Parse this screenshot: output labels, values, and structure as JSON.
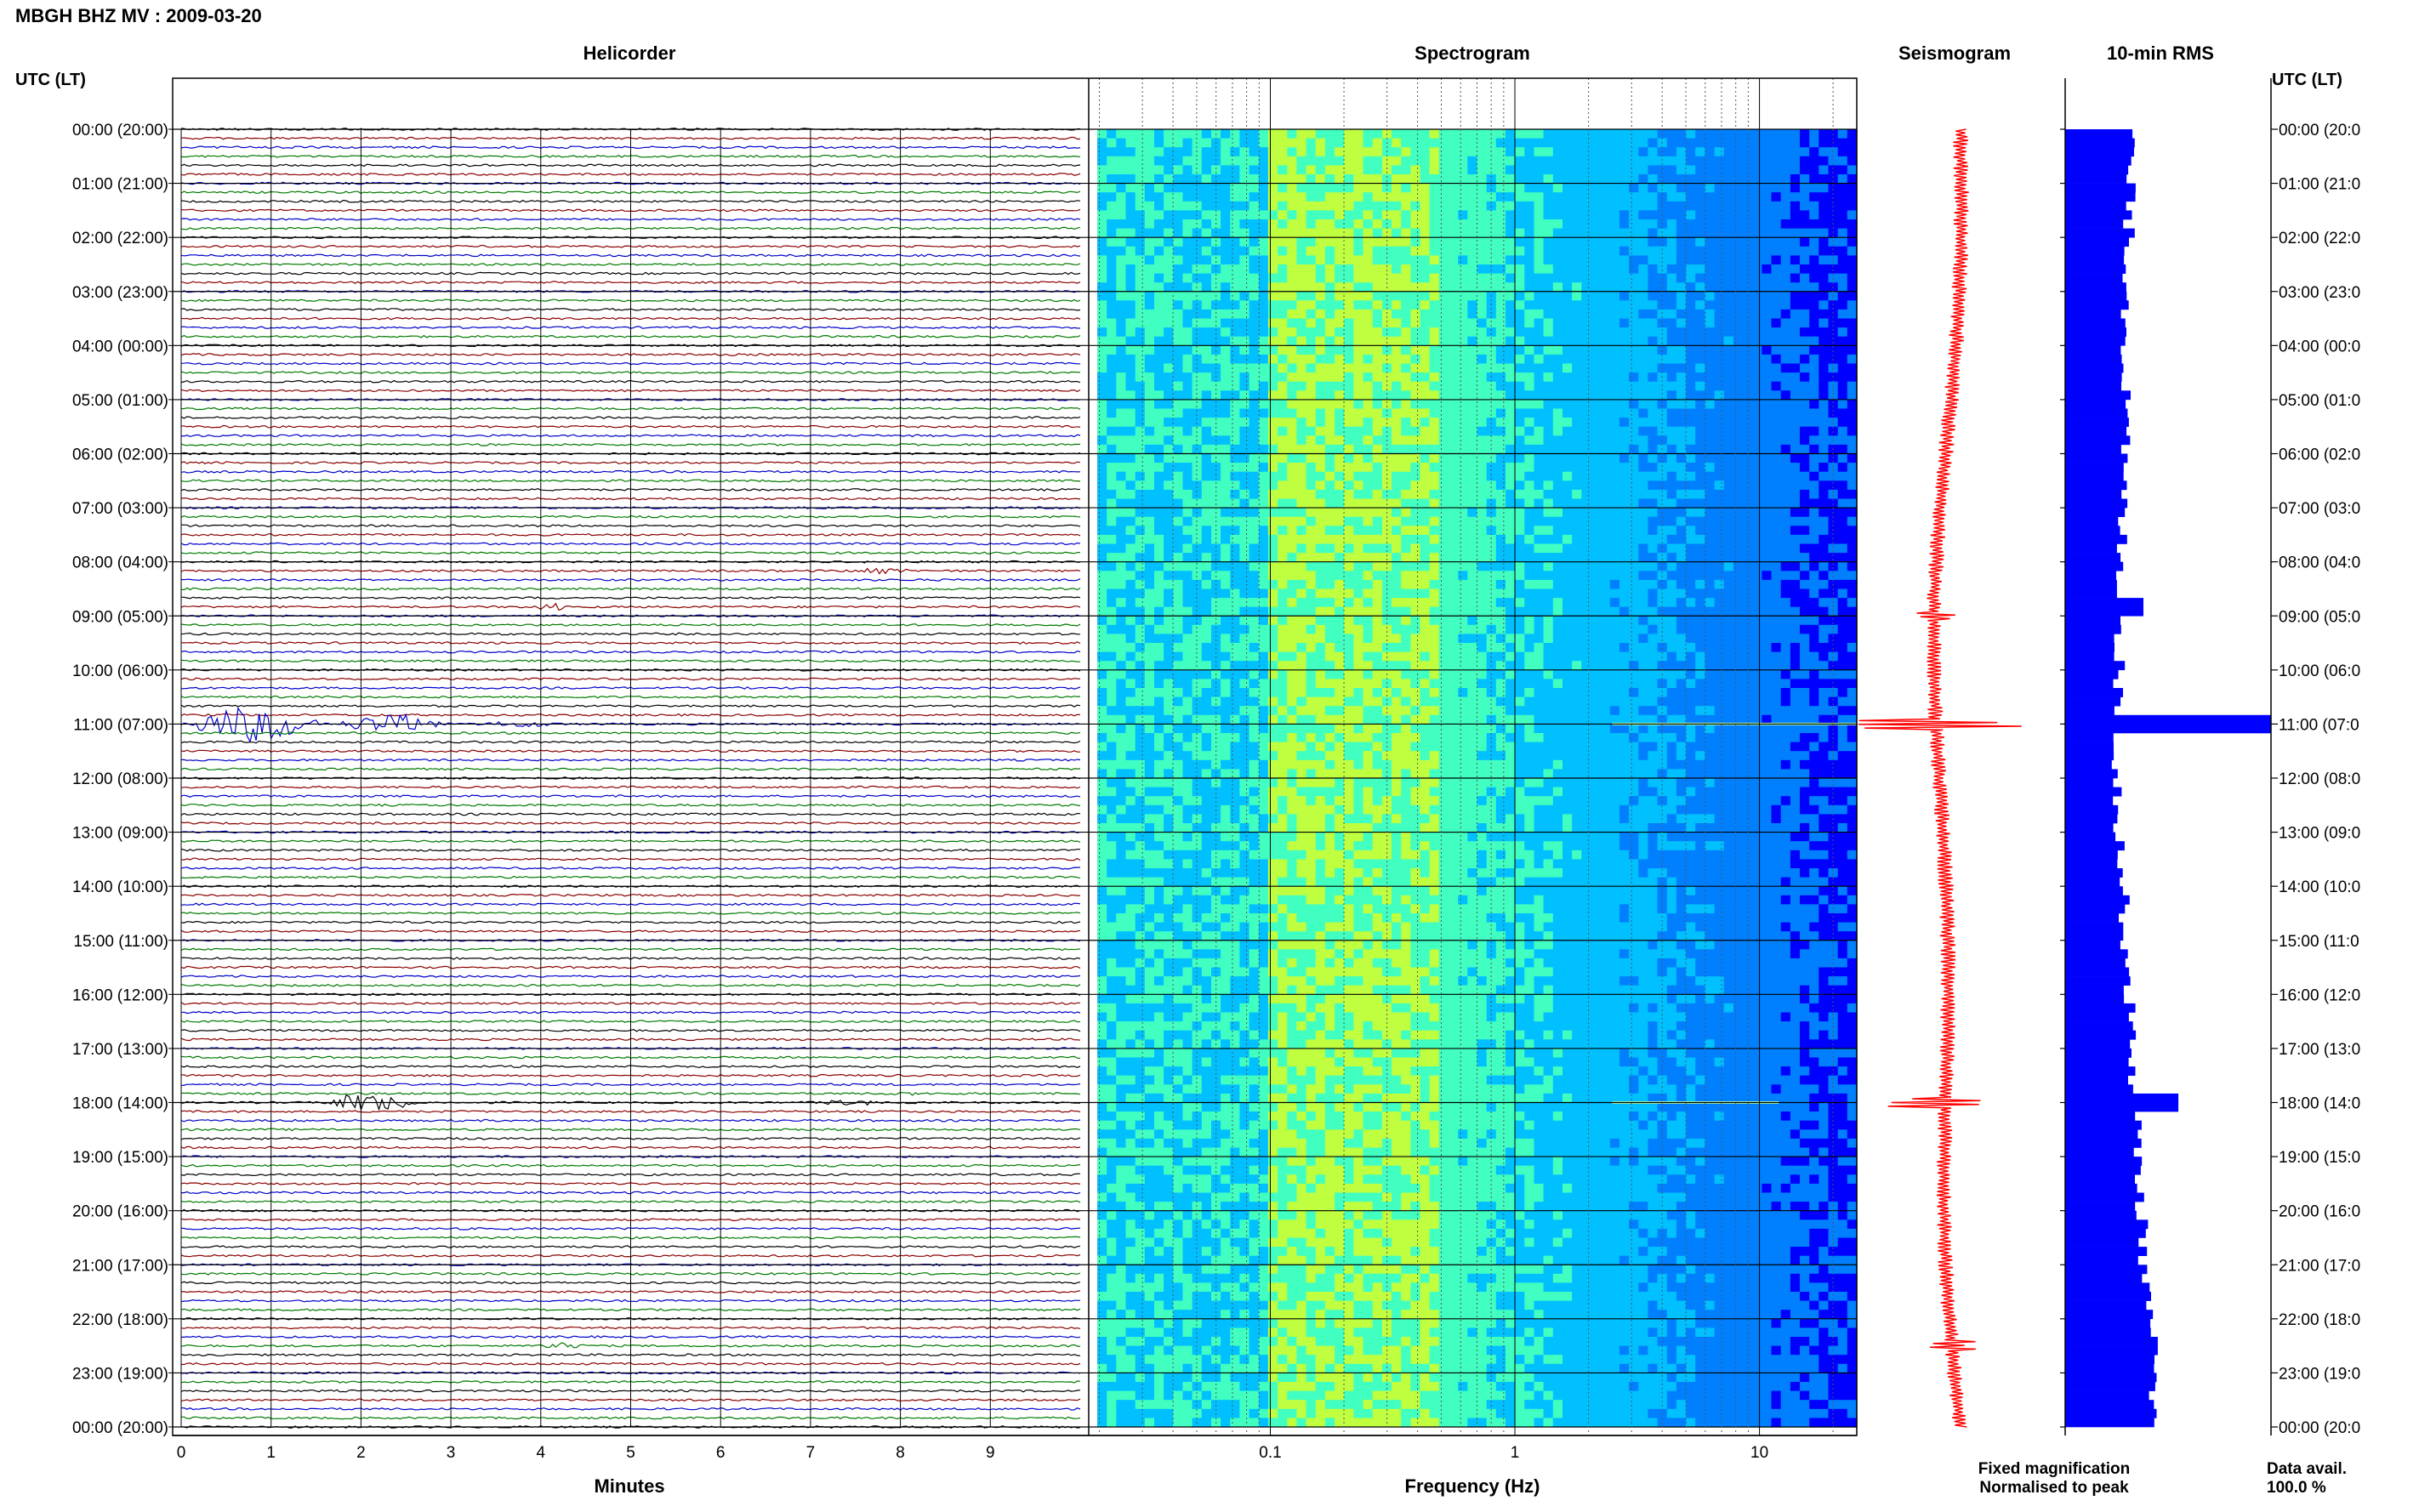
{
  "header": {
    "title": "MBGH BHZ MV : 2009-03-20",
    "utc_label": "UTC (LT)"
  },
  "panels": {
    "helicorder_title": "Helicorder",
    "spectrogram_title": "Spectrogram",
    "seismogram_title": "Seismogram",
    "rms_title": "10-min RMS"
  },
  "footer": {
    "minutes_label": "Minutes",
    "frequency_label": "Frequency (Hz)",
    "fixed_magnification": "Fixed magnification",
    "normalised_to_peak": "Normalised to peak",
    "data_avail_label": "Data avail.",
    "data_avail_value": "100.0 %"
  },
  "colors": {
    "trace_cycle": [
      "#000000",
      "#8b0000",
      "#0000cc",
      "#007a00"
    ],
    "seismogram": "#ff0000",
    "rms": "#0000ff",
    "fixed_mag_text": "#0000ff",
    "normalised_text": "#ff0000"
  },
  "chart_data": [
    {
      "type": "line",
      "name": "helicorder",
      "title": "Helicorder",
      "xlabel": "Minutes",
      "x_ticks": [
        0,
        1,
        2,
        3,
        4,
        5,
        6,
        7,
        8,
        9
      ],
      "xlim": [
        0,
        10
      ],
      "rows_per_hour": 6,
      "y_tick_labels_left": [
        "00:00 (20:00)",
        "01:00 (21:00)",
        "02:00 (22:00)",
        "03:00 (23:00)",
        "04:00 (00:00)",
        "05:00 (01:00)",
        "06:00 (02:00)",
        "07:00 (03:00)",
        "08:00 (04:00)",
        "09:00 (05:00)",
        "10:00 (06:00)",
        "11:00 (07:00)",
        "12:00 (08:00)",
        "13:00 (09:00)",
        "14:00 (10:00)",
        "15:00 (11:00)",
        "16:00 (12:00)",
        "17:00 (13:00)",
        "18:00 (14:00)",
        "19:00 (15:00)",
        "20:00 (16:00)",
        "21:00 (17:00)",
        "22:00 (18:00)",
        "23:00 (19:00)",
        "00:00 (20:00)"
      ],
      "y_tick_labels_right": [
        "00:00 (20:0",
        "01:00 (21:0",
        "02:00 (22:0",
        "03:00 (23:0",
        "04:00 (00:0",
        "05:00 (01:0",
        "06:00 (02:0",
        "07:00 (03:0",
        "08:00 (04:0",
        "09:00 (05:0",
        "10:00 (06:0",
        "11:00 (07:0",
        "12:00 (08:0",
        "13:00 (09:0",
        "14:00 (10:0",
        "15:00 (11:0",
        "16:00 (12:0",
        "17:00 (13:0",
        "18:00 (14:0",
        "19:00 (15:0",
        "20:00 (16:0",
        "21:00 (17:0",
        "22:00 (18:0",
        "23:00 (19:0",
        "00:00 (20:0"
      ],
      "events": [
        {
          "hour": 11.0,
          "minute": 0.0,
          "duration_min": 1.6,
          "amplitude": 3.0
        },
        {
          "hour": 11.0,
          "minute": 1.7,
          "duration_min": 1.3,
          "amplitude": 1.6
        },
        {
          "hour": 11.0,
          "minute": 3.3,
          "duration_min": 1.0,
          "amplitude": 0.5
        },
        {
          "hour": 18.0,
          "minute": 1.5,
          "duration_min": 1.2,
          "amplitude": 1.5
        },
        {
          "hour": 18.0,
          "minute": 7.1,
          "duration_min": 0.7,
          "amplitude": 0.6
        },
        {
          "hour": 8.17,
          "minute": 7.5,
          "duration_min": 0.6,
          "amplitude": 0.6
        },
        {
          "hour": 8.83,
          "minute": 3.9,
          "duration_min": 0.4,
          "amplitude": 0.6
        },
        {
          "hour": 17.83,
          "minute": 7.8,
          "duration_min": 0.4,
          "amplitude": 0.5
        },
        {
          "hour": 22.5,
          "minute": 4.0,
          "duration_min": 0.5,
          "amplitude": 0.6
        }
      ]
    },
    {
      "type": "heatmap",
      "name": "spectrogram",
      "title": "Spectrogram",
      "xlabel": "Frequency (Hz)",
      "x_scale": "log",
      "xlim": [
        0.0196,
        25
      ],
      "x_tick_labels": [
        "0.1",
        "1",
        "10"
      ],
      "x_tick_values": [
        0.1,
        1,
        10
      ],
      "colormap": [
        "#00008b",
        "#0000ff",
        "#0080ff",
        "#00c0ff",
        "#40ffc0",
        "#c0ff40"
      ],
      "peak_band_hz": [
        0.15,
        0.5
      ],
      "bright_lines": [
        {
          "hour": 11.0,
          "freq_from": 2.5,
          "freq_to": 25
        },
        {
          "hour": 18.0,
          "freq_from": 2.5,
          "freq_to": 12
        }
      ]
    },
    {
      "type": "line",
      "name": "seismogram",
      "title": "Seismogram",
      "ylim_hours": [
        0,
        24
      ],
      "spikes": [
        {
          "hour": 11.0,
          "amplitude": 6.0
        },
        {
          "hour": 18.0,
          "amplitude": 3.0
        },
        {
          "hour": 9.0,
          "amplitude": 1.3
        },
        {
          "hour": 22.5,
          "amplitude": 1.3
        }
      ]
    },
    {
      "type": "bar",
      "name": "rms",
      "title": "10-min RMS",
      "orientation": "horizontal",
      "ylim_hours": [
        0,
        24
      ],
      "baseline_start": 0.32,
      "baseline_mid": 0.25,
      "baseline_end": 0.43,
      "peaks": [
        {
          "hour": 11.0,
          "value": 1.0
        },
        {
          "hour": 18.0,
          "value": 0.55
        },
        {
          "hour": 8.83,
          "value": 0.38
        },
        {
          "hour": 22.5,
          "value": 0.45
        }
      ]
    }
  ]
}
